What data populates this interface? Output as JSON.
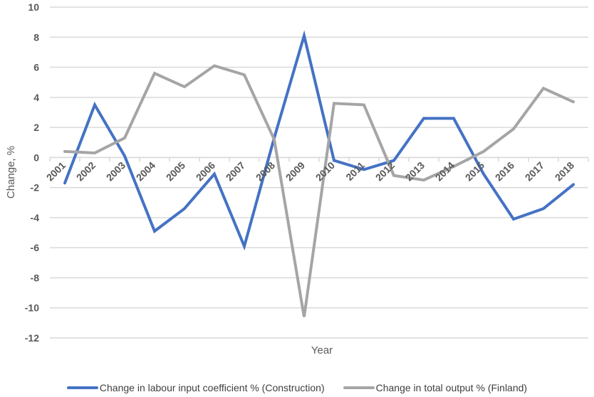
{
  "chart_data": {
    "type": "line",
    "title": "",
    "xlabel": "Year",
    "ylabel": "Change, %",
    "ylim": [
      -12,
      10
    ],
    "yticks": [
      10,
      8,
      6,
      4,
      2,
      0,
      -2,
      -4,
      -6,
      -8,
      -10,
      -12
    ],
    "grid": true,
    "legend_position": "bottom",
    "categories": [
      "2001",
      "2002",
      "2003",
      "2004",
      "2005",
      "2006",
      "2007",
      "2008",
      "2009",
      "2010",
      "2011",
      "2012",
      "2013",
      "2014",
      "2015",
      "2016",
      "2017",
      "2018"
    ],
    "series": [
      {
        "name": "Change in labour input coefficient % (Construction)",
        "color": "#4472C4",
        "values": [
          -1.7,
          3.5,
          0.1,
          -4.9,
          -3.4,
          -1.1,
          -5.9,
          1.3,
          8.1,
          -0.2,
          -0.8,
          -0.2,
          2.6,
          2.6,
          -1.1,
          -4.1,
          -3.4,
          -1.8
        ]
      },
      {
        "name": "Change in total output % (Finland)",
        "color": "#A5A5A5",
        "values": [
          0.4,
          0.3,
          1.3,
          5.6,
          4.7,
          6.1,
          5.5,
          1.2,
          -10.6,
          3.6,
          3.5,
          -1.2,
          -1.5,
          -0.6,
          0.4,
          1.9,
          4.6,
          3.7
        ]
      }
    ]
  },
  "legend": {
    "items": [
      {
        "label": "Change in labour input coefficient % (Construction)",
        "color": "#4472C4"
      },
      {
        "label": "Change in total output % (Finland)",
        "color": "#A5A5A5"
      }
    ]
  },
  "axes": {
    "x_title": "Year",
    "y_title": "Change, %"
  }
}
